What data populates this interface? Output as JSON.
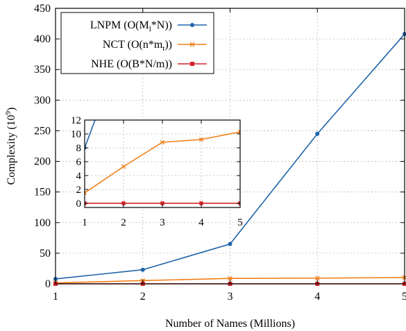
{
  "chart_data": {
    "type": "line",
    "title": "",
    "xlabel": "Number of Names (Millions)",
    "ylabel": "Complexity (10^9)",
    "ylabel_parts": {
      "base": "Complexity (10",
      "sup": "9",
      "tail": ")"
    },
    "x": [
      1,
      2,
      3,
      4,
      5
    ],
    "xlim": [
      1,
      5
    ],
    "ylim": [
      0,
      450
    ],
    "xticks": [
      1,
      2,
      3,
      4,
      5
    ],
    "yticks": [
      0,
      50,
      100,
      150,
      200,
      250,
      300,
      350,
      400,
      450
    ],
    "grid": true,
    "legend_position": "top-left",
    "series": [
      {
        "name": "LNPM (O(Ml*N))",
        "legend_parts": {
          "pre": "LNPM (O(M",
          "sub": "l",
          "post": "*N))"
        },
        "values": [
          8,
          23,
          65,
          245,
          408
        ],
        "color": "#1f63a8",
        "marker": "circle"
      },
      {
        "name": "NCT (O(n*mt))",
        "legend_parts": {
          "pre": "NCT (O(n*m",
          "sub": "t",
          "post": "))"
        },
        "values": [
          1.5,
          5.3,
          8.8,
          9.2,
          10.3
        ],
        "color": "#f07f17",
        "marker": "x"
      },
      {
        "name": "NHE (O(B*N/m))",
        "legend_parts": {
          "pre": "NHE (O(B*N/m))",
          "sub": "",
          "post": ""
        },
        "values": [
          0.01,
          0.01,
          0.01,
          0.01,
          0.01
        ],
        "color": "#d4232a",
        "marker": "square"
      }
    ],
    "inset": {
      "xlim": [
        1,
        5
      ],
      "ylim": [
        -0.6,
        12
      ],
      "xticks": [
        1,
        2,
        3,
        4,
        5
      ],
      "yticks": [
        0,
        2,
        4,
        6,
        8,
        10,
        12
      ]
    }
  }
}
